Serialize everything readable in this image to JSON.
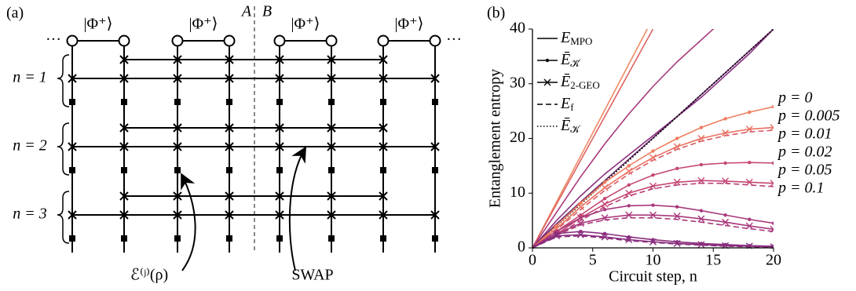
{
  "panel_a": {
    "label": "(a)",
    "bell_labels": [
      "|Φ⁺⟩",
      "|Φ⁺⟩",
      "|Φ⁺⟩",
      "|Φ⁺⟩"
    ],
    "ellipsis": [
      "···",
      "···"
    ],
    "cut_labels": [
      "A",
      "B"
    ],
    "step_labels": [
      "n = 1",
      "n = 2",
      "n = 3"
    ],
    "channel_label": "ℰ⁽ʲ⁾(ρ)",
    "swap_label": "SWAP"
  },
  "chart_data": {
    "type": "line",
    "panel_label": "(b)",
    "xlabel": "Circuit step, n",
    "ylabel": "Entanglement entropy",
    "x": [
      0,
      2,
      4,
      6,
      8,
      10,
      12,
      14,
      16,
      18,
      20
    ],
    "xlim": [
      0,
      20
    ],
    "ylim": [
      0,
      40
    ],
    "xticks": [
      0,
      5,
      10,
      15,
      20
    ],
    "yticks": [
      0,
      10,
      20,
      30,
      40
    ],
    "legend_position": "upper left",
    "legend": [
      {
        "label": "E",
        "sub": "MPO",
        "style": "solid"
      },
      {
        "label": "Ē",
        "sub": "𝒦̃",
        "style": "dots"
      },
      {
        "label": "Ē",
        "sub": "2-GEO",
        "style": "cross"
      },
      {
        "label": "E",
        "sub": "f",
        "style": "dashed"
      },
      {
        "label": "Ē",
        "sub": "𝒦",
        "style": "dotted"
      }
    ],
    "annotations": [
      {
        "text": "p = 0",
        "color": "#f4916b"
      },
      {
        "text": "p = 0.005",
        "color": "#e9705f"
      },
      {
        "text": "p = 0.01",
        "color": "#d95a68"
      },
      {
        "text": "p = 0.02",
        "color": "#c44772"
      },
      {
        "text": "p = 0.05",
        "color": "#a8387b"
      },
      {
        "text": "p = 0.1",
        "color": "#8a2e7e"
      }
    ],
    "series": [
      {
        "style": "solid",
        "color": "#f08a64",
        "values": [
          0,
          8.4,
          16.8,
          25.2,
          33.6,
          42,
          null,
          null,
          null,
          null,
          null
        ]
      },
      {
        "style": "solid",
        "color": "#dd6262",
        "values": [
          0,
          8,
          16,
          24,
          32,
          40,
          null,
          null,
          null,
          null,
          null
        ]
      },
      {
        "style": "solid",
        "color": "#a8387b",
        "values": [
          0,
          6.5,
          13,
          19,
          24.5,
          29.5,
          34,
          38,
          42,
          null,
          null
        ]
      },
      {
        "style": "solid",
        "color": "#8a2e7e",
        "values": [
          0,
          5,
          9.5,
          13.5,
          17,
          20.5,
          24,
          27.5,
          31.5,
          35.5,
          40
        ]
      },
      {
        "style": "solid",
        "color": "#6d2a6e",
        "values": [
          0,
          4.4,
          8.4,
          12.3,
          16.2,
          20.1,
          24,
          28,
          32,
          36,
          40
        ]
      },
      {
        "style": "dotted",
        "color": "#000000",
        "values": [
          0,
          4,
          8,
          12,
          16,
          20,
          24,
          28,
          32,
          36,
          40
        ]
      },
      {
        "style": "dots",
        "color": "#ee7e60",
        "values": [
          0,
          4,
          8.2,
          12,
          15,
          17.7,
          20,
          22,
          23.6,
          24.8,
          25.8
        ]
      },
      {
        "style": "cross",
        "color": "#e9705f",
        "values": [
          0,
          3.5,
          7.5,
          11,
          14,
          16.5,
          18.5,
          20,
          21,
          21.7,
          22
        ]
      },
      {
        "style": "dashed",
        "color": "#d95a68",
        "values": [
          0,
          3.3,
          7,
          10.5,
          13.5,
          16,
          18,
          19.5,
          20.5,
          21.2,
          21.5
        ]
      },
      {
        "style": "dots",
        "color": "#c44772",
        "values": [
          0,
          3,
          6,
          9,
          11.5,
          13.3,
          14.5,
          15.2,
          15.5,
          15.6,
          15.5
        ]
      },
      {
        "style": "cross",
        "color": "#c44772",
        "values": [
          0,
          2.5,
          5.5,
          8,
          10,
          11.3,
          12,
          12.3,
          12.2,
          12,
          11.8
        ]
      },
      {
        "style": "dashed",
        "color": "#b9407a",
        "values": [
          0,
          2.3,
          5,
          7.5,
          9.5,
          10.8,
          11.5,
          11.8,
          11.8,
          11.5,
          11.2
        ]
      },
      {
        "style": "dots",
        "color": "#a8387b",
        "values": [
          0,
          3,
          5.5,
          7,
          7.7,
          7.8,
          7.5,
          6.8,
          6,
          5.2,
          4.5
        ]
      },
      {
        "style": "cross",
        "color": "#a8387b",
        "values": [
          0,
          2.5,
          4.5,
          5.5,
          6,
          6,
          5.8,
          5.3,
          4.7,
          4,
          3.4
        ]
      },
      {
        "style": "dashed",
        "color": "#a8387b",
        "values": [
          0,
          2.3,
          4.2,
          5.1,
          5.5,
          5.5,
          5.2,
          4.7,
          4.1,
          3.5,
          3
        ]
      },
      {
        "style": "dots",
        "color": "#8a2e7e",
        "values": [
          0,
          2.6,
          3,
          2.6,
          2,
          1.5,
          1.1,
          0.8,
          0.6,
          0.4,
          0.3
        ]
      },
      {
        "style": "cross",
        "color": "#8a2e7e",
        "values": [
          0,
          2.2,
          2.4,
          2,
          1.5,
          1.1,
          0.8,
          0.6,
          0.4,
          0.3,
          0.2
        ]
      },
      {
        "style": "dashed",
        "color": "#8a2e7e",
        "values": [
          0,
          2,
          2.2,
          1.8,
          1.3,
          1,
          0.7,
          0.5,
          0.3,
          0.2,
          0.1
        ]
      }
    ]
  }
}
